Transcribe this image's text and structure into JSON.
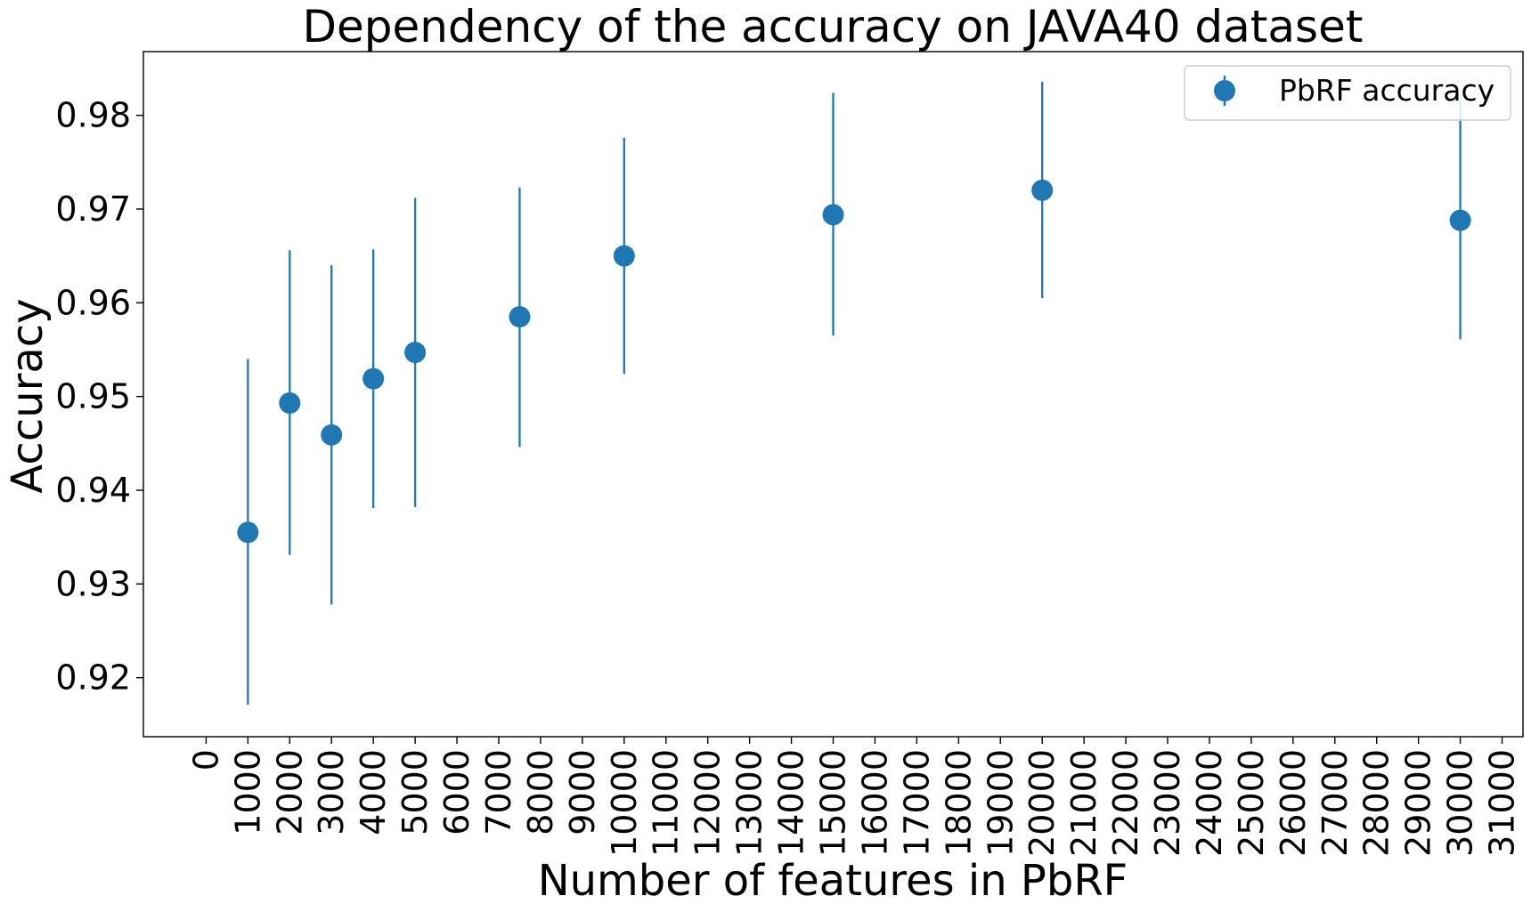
{
  "chart_data": {
    "type": "scatter",
    "title": "Dependency of the accuracy on JAVA40 dataset",
    "xlabel": "Number of features in PbRF",
    "ylabel": "Accuracy",
    "xlim": [
      -1500,
      31500
    ],
    "ylim": [
      0.9137,
      0.9868
    ],
    "x_ticks": [
      0,
      1000,
      2000,
      3000,
      4000,
      5000,
      6000,
      7000,
      8000,
      9000,
      10000,
      11000,
      12000,
      13000,
      14000,
      15000,
      16000,
      17000,
      18000,
      19000,
      20000,
      21000,
      22000,
      23000,
      24000,
      25000,
      26000,
      27000,
      28000,
      29000,
      30000,
      31000
    ],
    "y_ticks": [
      0.92,
      0.93,
      0.94,
      0.95,
      0.96,
      0.97,
      0.98
    ],
    "grid": false,
    "legend": {
      "entries": [
        "PbRF accuracy"
      ],
      "placement": "top-right"
    },
    "series": [
      {
        "name": "PbRF accuracy",
        "color": "#1f77b4",
        "marker": "circle",
        "points": [
          {
            "x": 1000,
            "y": 0.9355,
            "ymin": 0.9171,
            "ymax": 0.954
          },
          {
            "x": 2000,
            "y": 0.9493,
            "ymin": 0.9331,
            "ymax": 0.9656
          },
          {
            "x": 3000,
            "y": 0.9459,
            "ymin": 0.9278,
            "ymax": 0.964
          },
          {
            "x": 4000,
            "y": 0.9519,
            "ymin": 0.9381,
            "ymax": 0.9657
          },
          {
            "x": 5000,
            "y": 0.9547,
            "ymin": 0.9382,
            "ymax": 0.9712
          },
          {
            "x": 7500,
            "y": 0.9585,
            "ymin": 0.9446,
            "ymax": 0.9723
          },
          {
            "x": 10000,
            "y": 0.965,
            "ymin": 0.9524,
            "ymax": 0.9776
          },
          {
            "x": 15000,
            "y": 0.9694,
            "ymin": 0.9565,
            "ymax": 0.9824
          },
          {
            "x": 20000,
            "y": 0.972,
            "ymin": 0.9605,
            "ymax": 0.9836
          },
          {
            "x": 30000,
            "y": 0.9688,
            "ymin": 0.9561,
            "ymax": 0.9817
          }
        ]
      }
    ]
  }
}
